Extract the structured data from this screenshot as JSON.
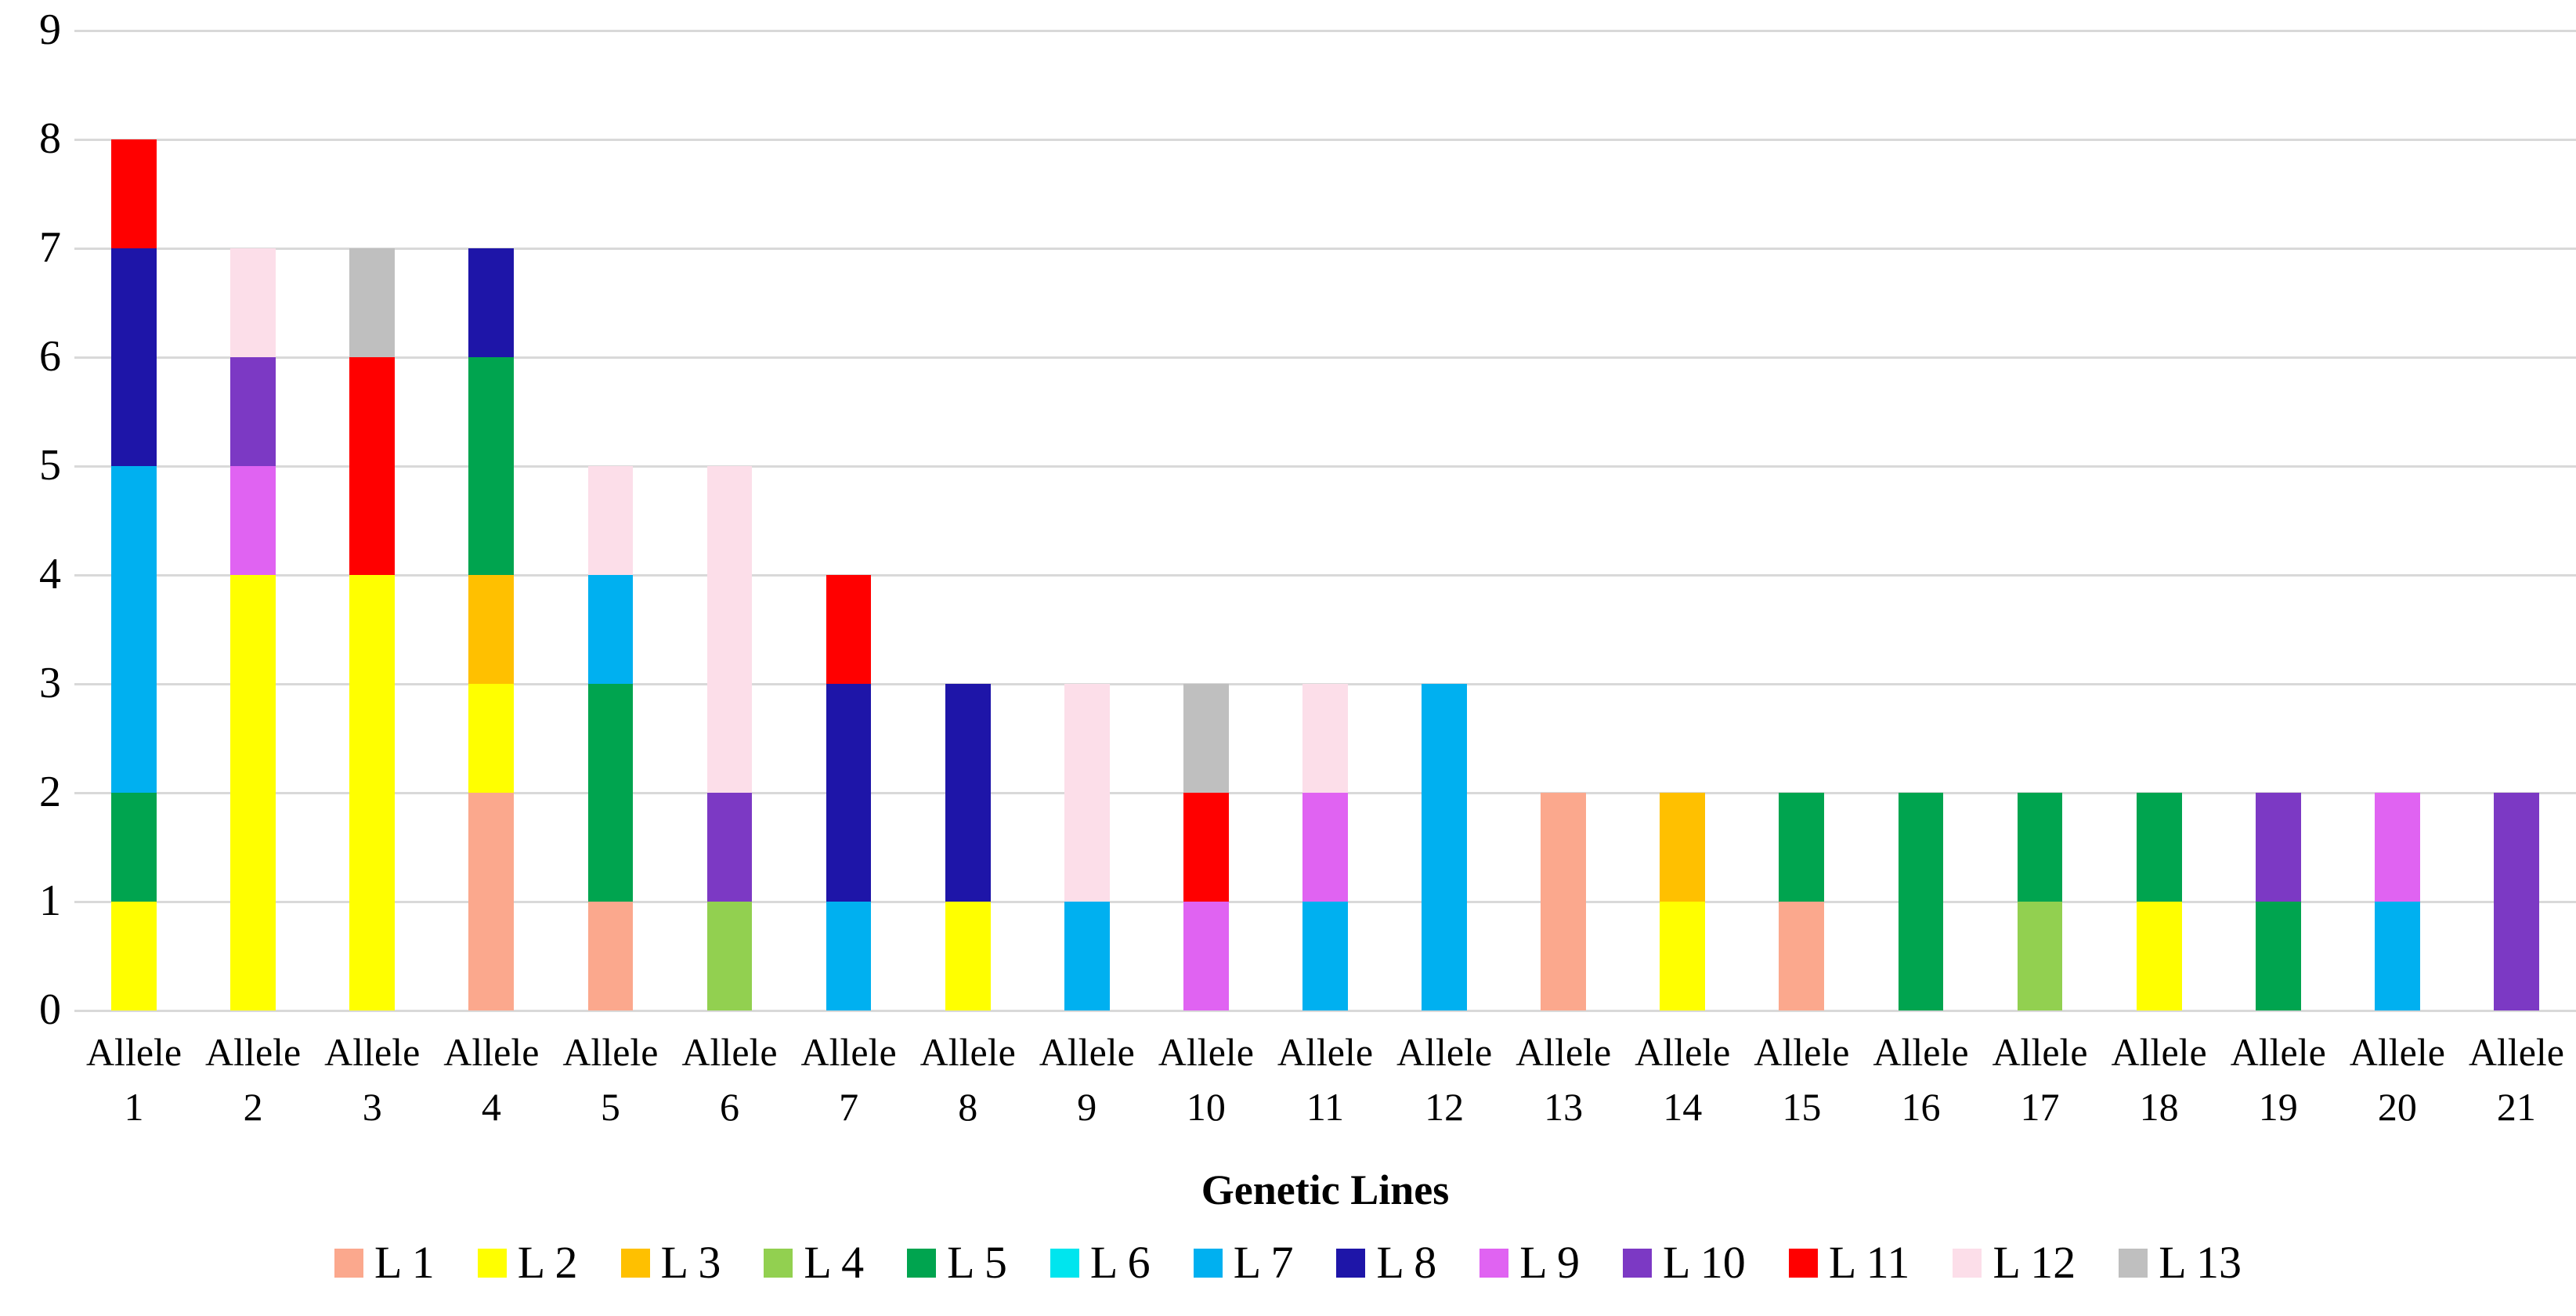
{
  "chart_data": {
    "type": "bar",
    "stacked": true,
    "title": "",
    "xlabel": "Genetic Lines",
    "ylabel": "",
    "ylim": [
      0,
      9
    ],
    "ytick_step": 1,
    "yticks": [
      "0",
      "1",
      "2",
      "3",
      "4",
      "5",
      "6",
      "7",
      "8",
      "9"
    ],
    "grid": true,
    "legend_position": "bottom",
    "categories": [
      "Allele 1",
      "Allele 2",
      "Allele 3",
      "Allele 4",
      "Allele 5",
      "Allele 6",
      "Allele 7",
      "Allele 8",
      "Allele 9",
      "Allele 10",
      "Allele 11",
      "Allele 12",
      "Allele 13",
      "Allele 14",
      "Allele 15",
      "Allele 16",
      "Allele 17",
      "Allele 18",
      "Allele 19",
      "Allele 20",
      "Allele 21"
    ],
    "series": [
      {
        "name": "L 1",
        "color": "#FBA88D",
        "values": [
          0,
          0,
          0,
          2,
          1,
          0,
          0,
          0,
          0,
          0,
          0,
          0,
          2,
          0,
          1,
          0,
          0,
          0,
          0,
          0,
          0
        ]
      },
      {
        "name": "L 2",
        "color": "#FFFF00",
        "values": [
          1,
          4,
          4,
          1,
          0,
          0,
          0,
          1,
          0,
          0,
          0,
          0,
          0,
          1,
          0,
          0,
          0,
          1,
          0,
          0,
          0
        ]
      },
      {
        "name": "L 3",
        "color": "#FFC000",
        "values": [
          0,
          0,
          0,
          1,
          0,
          0,
          0,
          0,
          0,
          0,
          0,
          0,
          0,
          1,
          0,
          0,
          0,
          0,
          0,
          0,
          0
        ]
      },
      {
        "name": "L 4",
        "color": "#92D050",
        "values": [
          0,
          0,
          0,
          0,
          0,
          1,
          0,
          0,
          0,
          0,
          0,
          0,
          0,
          0,
          0,
          0,
          1,
          0,
          0,
          0,
          0
        ]
      },
      {
        "name": "L 5",
        "color": "#00A44F",
        "values": [
          1,
          0,
          0,
          2,
          2,
          0,
          0,
          0,
          0,
          0,
          0,
          0,
          0,
          0,
          1,
          2,
          1,
          1,
          1,
          0,
          0
        ]
      },
      {
        "name": "L 6",
        "color": "#00E5EE",
        "values": [
          0,
          0,
          0,
          0,
          0,
          0,
          0,
          0,
          0,
          0,
          0,
          0,
          0,
          0,
          0,
          0,
          0,
          0,
          0,
          0,
          0
        ]
      },
      {
        "name": "L 7",
        "color": "#00B0F0",
        "values": [
          3,
          0,
          0,
          0,
          1,
          0,
          1,
          0,
          1,
          0,
          1,
          3,
          0,
          0,
          0,
          0,
          0,
          0,
          0,
          1,
          0
        ]
      },
      {
        "name": "L 8",
        "color": "#1E15A8",
        "values": [
          2,
          0,
          0,
          1,
          0,
          0,
          2,
          2,
          0,
          0,
          0,
          0,
          0,
          0,
          0,
          0,
          0,
          0,
          0,
          0,
          0
        ]
      },
      {
        "name": "L 9",
        "color": "#E063F2",
        "values": [
          0,
          1,
          0,
          0,
          0,
          0,
          0,
          0,
          0,
          1,
          1,
          0,
          0,
          0,
          0,
          0,
          0,
          0,
          0,
          1,
          0
        ]
      },
      {
        "name": "L 10",
        "color": "#7C39C4",
        "values": [
          0,
          1,
          0,
          0,
          0,
          1,
          0,
          0,
          0,
          0,
          0,
          0,
          0,
          0,
          0,
          0,
          0,
          0,
          1,
          0,
          2
        ]
      },
      {
        "name": "L 11",
        "color": "#FF0000",
        "values": [
          1,
          0,
          2,
          0,
          0,
          0,
          1,
          0,
          0,
          1,
          0,
          0,
          0,
          0,
          0,
          0,
          0,
          0,
          0,
          0,
          0
        ]
      },
      {
        "name": "L 12",
        "color": "#FCDEE9",
        "values": [
          0,
          1,
          0,
          0,
          1,
          3,
          0,
          0,
          2,
          0,
          1,
          0,
          0,
          0,
          0,
          0,
          0,
          0,
          0,
          0,
          0
        ]
      },
      {
        "name": "L 13",
        "color": "#BFBFBF",
        "values": [
          0,
          0,
          1,
          0,
          0,
          0,
          0,
          0,
          0,
          1,
          0,
          0,
          0,
          0,
          0,
          0,
          0,
          0,
          0,
          0,
          0
        ]
      }
    ]
  },
  "colors": {
    "gridline": "#D9D9D9",
    "background": "#FFFFFF",
    "text": "#000000"
  },
  "axis_title": {
    "x": "Genetic Lines"
  }
}
